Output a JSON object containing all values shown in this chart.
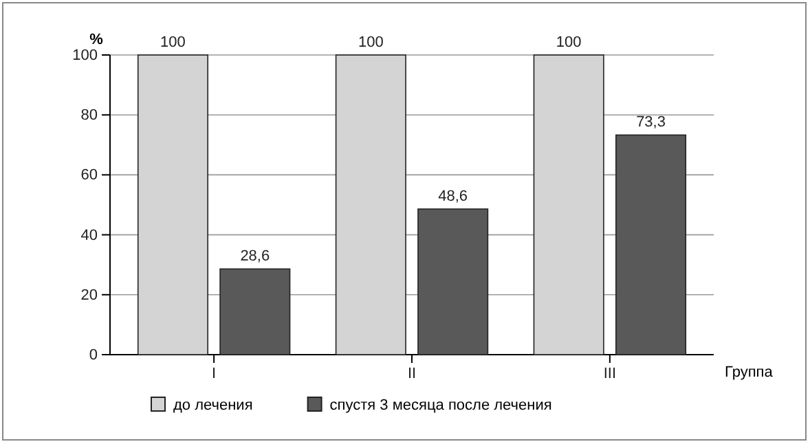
{
  "chart_data": {
    "type": "bar",
    "ylabel": "%",
    "xlabel": "Группа",
    "categories": [
      "I",
      "II",
      "III"
    ],
    "series": [
      {
        "name": "до лечения",
        "color": "#d4d4d4",
        "values": [
          100,
          100,
          100
        ],
        "value_labels": [
          "100",
          "100",
          "100"
        ]
      },
      {
        "name": "спустя 3 месяца после лечения",
        "color": "#595959",
        "values": [
          28.6,
          48.6,
          73.3
        ],
        "value_labels": [
          "28,6",
          "48,6",
          "73,3"
        ]
      }
    ],
    "ylim": [
      0,
      100
    ],
    "yticks": [
      0,
      20,
      40,
      60,
      80,
      100
    ],
    "grid": "y",
    "legend": "bottom"
  }
}
